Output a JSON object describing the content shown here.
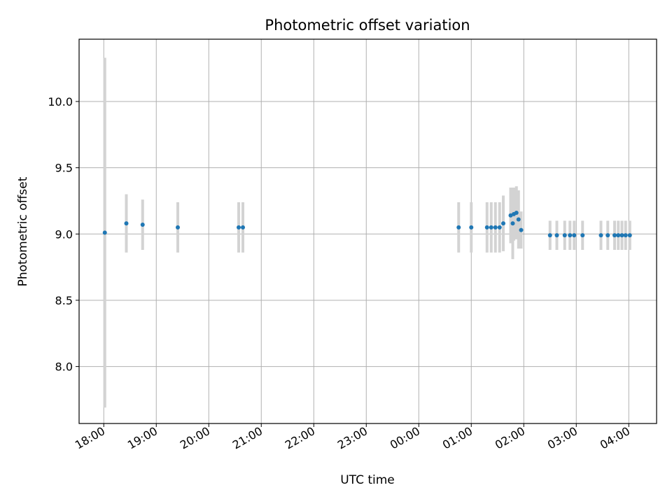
{
  "chart_data": {
    "type": "scatter",
    "title": "Photometric offset variation",
    "xlabel": "UTC time",
    "ylabel": "Photometric offset",
    "grid": true,
    "x_unit": "hours since 18:00 UTC",
    "xlim": [
      -0.47,
      10.53
    ],
    "ylim": [
      7.57,
      10.47
    ],
    "x_ticks": [
      0,
      1,
      2,
      3,
      4,
      5,
      6,
      7,
      8,
      9,
      10
    ],
    "x_tick_labels": [
      "18:00",
      "19:00",
      "20:00",
      "21:00",
      "22:00",
      "23:00",
      "00:00",
      "01:00",
      "02:00",
      "03:00",
      "04:00"
    ],
    "y_ticks": [
      8.0,
      8.5,
      9.0,
      9.5,
      10.0
    ],
    "y_tick_labels": [
      "8.0",
      "8.5",
      "9.0",
      "9.5",
      "10.0"
    ],
    "series": [
      {
        "name": "Photometric offset",
        "color": "#1f77b4",
        "errorbar_color": "#d3d3d3",
        "points": [
          {
            "x": 0.02,
            "y": 9.01,
            "err": 1.32
          },
          {
            "x": 0.43,
            "y": 9.08,
            "err": 0.22
          },
          {
            "x": 0.74,
            "y": 9.07,
            "err": 0.19
          },
          {
            "x": 1.41,
            "y": 9.05,
            "err": 0.19
          },
          {
            "x": 2.57,
            "y": 9.05,
            "err": 0.19
          },
          {
            "x": 2.65,
            "y": 9.05,
            "err": 0.19
          },
          {
            "x": 6.76,
            "y": 9.05,
            "err": 0.19
          },
          {
            "x": 7.0,
            "y": 9.05,
            "err": 0.19
          },
          {
            "x": 7.3,
            "y": 9.05,
            "err": 0.19
          },
          {
            "x": 7.38,
            "y": 9.05,
            "err": 0.19
          },
          {
            "x": 7.46,
            "y": 9.05,
            "err": 0.19
          },
          {
            "x": 7.54,
            "y": 9.05,
            "err": 0.19
          },
          {
            "x": 7.61,
            "y": 9.08,
            "err": 0.21
          },
          {
            "x": 7.75,
            "y": 9.14,
            "err": 0.21
          },
          {
            "x": 7.79,
            "y": 9.08,
            "err": 0.27
          },
          {
            "x": 7.81,
            "y": 9.15,
            "err": 0.2
          },
          {
            "x": 7.86,
            "y": 9.16,
            "err": 0.2
          },
          {
            "x": 7.9,
            "y": 9.11,
            "err": 0.22
          },
          {
            "x": 7.95,
            "y": 9.03,
            "err": 0.14
          },
          {
            "x": 8.5,
            "y": 8.99,
            "err": 0.11
          },
          {
            "x": 8.63,
            "y": 8.99,
            "err": 0.11
          },
          {
            "x": 8.78,
            "y": 8.99,
            "err": 0.11
          },
          {
            "x": 8.88,
            "y": 8.99,
            "err": 0.11
          },
          {
            "x": 8.96,
            "y": 8.99,
            "err": 0.11
          },
          {
            "x": 9.12,
            "y": 8.99,
            "err": 0.11
          },
          {
            "x": 9.47,
            "y": 8.99,
            "err": 0.11
          },
          {
            "x": 9.6,
            "y": 8.99,
            "err": 0.11
          },
          {
            "x": 9.73,
            "y": 8.99,
            "err": 0.11
          },
          {
            "x": 9.8,
            "y": 8.99,
            "err": 0.11
          },
          {
            "x": 9.87,
            "y": 8.99,
            "err": 0.11
          },
          {
            "x": 9.94,
            "y": 8.99,
            "err": 0.11
          },
          {
            "x": 10.02,
            "y": 8.99,
            "err": 0.11
          }
        ]
      }
    ]
  }
}
